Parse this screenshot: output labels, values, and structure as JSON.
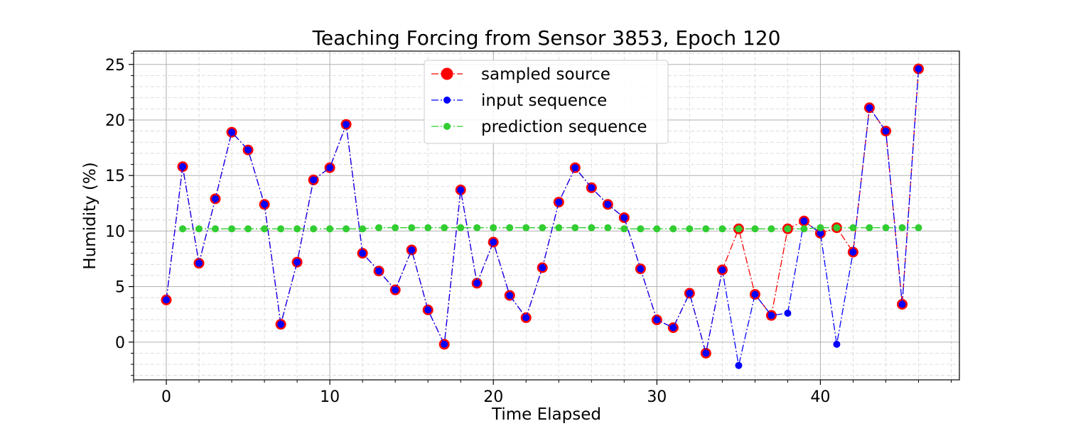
{
  "chart_data": {
    "type": "line",
    "title": "Teaching Forcing from Sensor 3853, Epoch 120",
    "xlabel": "Time Elapsed",
    "ylabel": "Humidity (%)",
    "xlim": [
      -2,
      48.5
    ],
    "ylim": [
      -3.4,
      26.2
    ],
    "x_ticks": [
      0,
      10,
      20,
      30,
      40
    ],
    "y_ticks": [
      0,
      5,
      10,
      15,
      20,
      25
    ],
    "grid": true,
    "legend_position": "upper-center",
    "series": [
      {
        "name": "sampled source",
        "color": "#ff0000",
        "x": [
          0,
          1,
          2,
          3,
          4,
          5,
          6,
          7,
          8,
          9,
          10,
          11,
          12,
          13,
          14,
          15,
          16,
          17,
          18,
          19,
          20,
          21,
          22,
          23,
          24,
          25,
          26,
          27,
          28,
          29,
          30,
          31,
          32,
          33,
          34,
          35,
          36,
          37,
          38,
          39,
          40,
          41,
          42,
          43,
          44,
          45,
          46
        ],
        "y": [
          3.8,
          15.8,
          7.1,
          12.9,
          18.9,
          17.3,
          12.4,
          1.6,
          7.2,
          14.6,
          15.7,
          19.6,
          8.0,
          6.4,
          4.7,
          8.3,
          2.9,
          -0.2,
          13.7,
          5.3,
          9.0,
          4.2,
          2.2,
          6.7,
          12.6,
          15.7,
          13.9,
          12.4,
          11.2,
          6.6,
          2.0,
          1.3,
          4.4,
          -1.0,
          6.5,
          10.2,
          4.3,
          2.4,
          10.2,
          10.9,
          9.8,
          10.3,
          8.1,
          21.1,
          19.0,
          3.4,
          24.6
        ]
      },
      {
        "name": "input sequence",
        "color": "#0000ff",
        "x": [
          0,
          1,
          2,
          3,
          4,
          5,
          6,
          7,
          8,
          9,
          10,
          11,
          12,
          13,
          14,
          15,
          16,
          17,
          18,
          19,
          20,
          21,
          22,
          23,
          24,
          25,
          26,
          27,
          28,
          29,
          30,
          31,
          32,
          33,
          34,
          35,
          36,
          37,
          38,
          39,
          40,
          41,
          42,
          43,
          44,
          45,
          46
        ],
        "y": [
          3.8,
          15.8,
          7.1,
          12.9,
          18.9,
          17.3,
          12.4,
          1.6,
          7.2,
          14.6,
          15.7,
          19.6,
          8.0,
          6.4,
          4.7,
          8.3,
          2.9,
          -0.2,
          13.7,
          5.3,
          9.0,
          4.2,
          2.2,
          6.7,
          12.6,
          15.7,
          13.9,
          12.4,
          11.2,
          6.6,
          2.0,
          1.3,
          4.4,
          -1.0,
          6.5,
          -2.1,
          4.3,
          2.4,
          2.6,
          10.9,
          9.8,
          -0.2,
          8.1,
          21.1,
          19.0,
          3.4,
          24.6
        ]
      },
      {
        "name": "prediction sequence",
        "color": "#32cd32",
        "x": [
          1,
          2,
          3,
          4,
          5,
          6,
          7,
          8,
          9,
          10,
          11,
          12,
          13,
          14,
          15,
          16,
          17,
          18,
          19,
          20,
          21,
          22,
          23,
          24,
          25,
          26,
          27,
          28,
          29,
          30,
          31,
          32,
          33,
          34,
          35,
          36,
          37,
          38,
          39,
          40,
          41,
          42,
          43,
          44,
          45,
          46
        ],
        "y": [
          10.2,
          10.2,
          10.2,
          10.2,
          10.2,
          10.2,
          10.2,
          10.2,
          10.2,
          10.2,
          10.2,
          10.2,
          10.3,
          10.3,
          10.3,
          10.3,
          10.3,
          10.3,
          10.3,
          10.3,
          10.3,
          10.3,
          10.3,
          10.3,
          10.3,
          10.3,
          10.3,
          10.2,
          10.2,
          10.2,
          10.2,
          10.2,
          10.2,
          10.2,
          10.2,
          10.2,
          10.2,
          10.2,
          10.2,
          10.3,
          10.3,
          10.3,
          10.3,
          10.3,
          10.3,
          10.3
        ]
      }
    ]
  }
}
